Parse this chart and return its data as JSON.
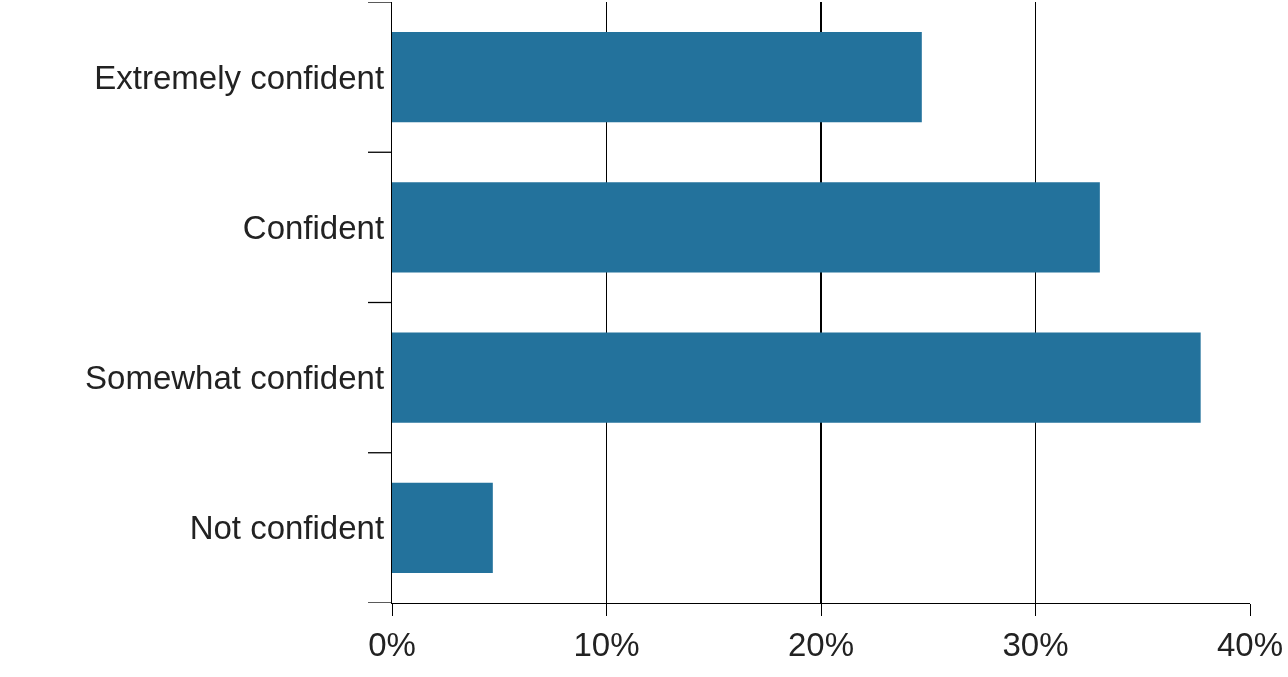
{
  "chart_data": {
    "type": "bar",
    "orientation": "horizontal",
    "categories": [
      "Extremely confident",
      "Confident",
      "Somewhat confident",
      "Not confident"
    ],
    "values": [
      24.7,
      33.0,
      37.7,
      4.7
    ],
    "color": "#23729c",
    "xlim": [
      0,
      40
    ],
    "xticks": [
      {
        "value": 0,
        "label": "0%"
      },
      {
        "value": 10,
        "label": "10%"
      },
      {
        "value": 20,
        "label": "20%"
      },
      {
        "value": 30,
        "label": "30%"
      },
      {
        "value": 40,
        "label": "40%"
      }
    ],
    "grid": "x",
    "legend": false
  }
}
